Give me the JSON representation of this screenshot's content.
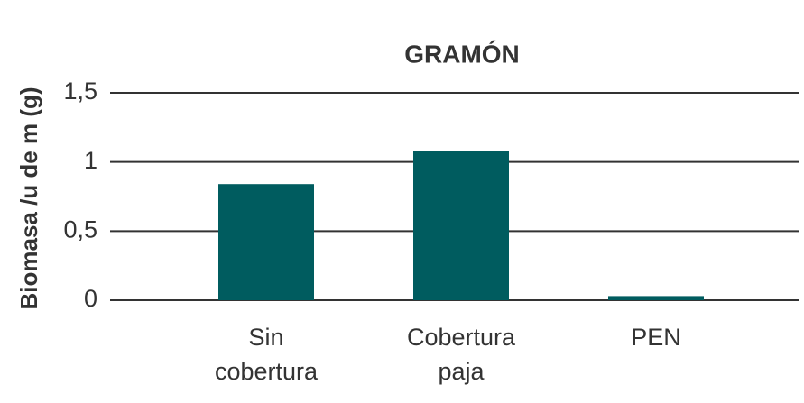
{
  "chart_data": {
    "type": "bar",
    "title": "GRAMÓN",
    "y_label": "Biomasa /u de m (g)",
    "categories": [
      "Sin cobertura",
      "Cobertura paja",
      "PEN"
    ],
    "values": [
      0.84,
      1.08,
      0.03
    ],
    "color": "#005c5f",
    "ylim": [
      0,
      1.5
    ],
    "yticks": [
      0,
      {
        "value": 0.5,
        "label": "0,5"
      },
      1,
      {
        "value": 1.5,
        "label": "1,5"
      }
    ],
    "grid": true
  }
}
